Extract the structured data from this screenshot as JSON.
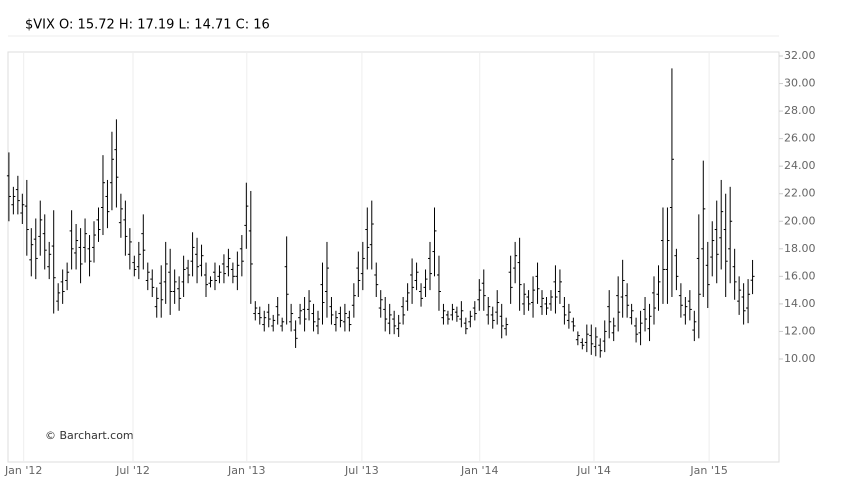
{
  "chart_data": {
    "type": "ohlc",
    "title": "$VIX O: 15.72 H: 17.19 L: 14.71 C: 16",
    "watermark": "© Barchart.com",
    "color": "#000000",
    "x": [
      0,
      1,
      2,
      3,
      4,
      5,
      6,
      7,
      8,
      9,
      10,
      11,
      12,
      13,
      14,
      15,
      16,
      17,
      18,
      19,
      20,
      21,
      22,
      23,
      24,
      25,
      26,
      27,
      28,
      29,
      30,
      31,
      32,
      33,
      34,
      35,
      36,
      37,
      38,
      39,
      40,
      41,
      42,
      43,
      44,
      45,
      46,
      47,
      48,
      49,
      50,
      51,
      52,
      53,
      54,
      55,
      56,
      57,
      58,
      59,
      60,
      61,
      62,
      63,
      64,
      65,
      66,
      67,
      68,
      69,
      70,
      71,
      72,
      73,
      74,
      75,
      76,
      77,
      78,
      79,
      80,
      81,
      82,
      83,
      84,
      85,
      86,
      87,
      88,
      89,
      90,
      91,
      92,
      93,
      94,
      95,
      96,
      97,
      98,
      99,
      100,
      101,
      102,
      103,
      104,
      105,
      106,
      107,
      108,
      109,
      110,
      111,
      112,
      113,
      114,
      115,
      116,
      117,
      118,
      119,
      120,
      121,
      122,
      123,
      124,
      125,
      126,
      127,
      128,
      129,
      130,
      131,
      132,
      133,
      134,
      135,
      136,
      137,
      138,
      139,
      140,
      141,
      142,
      143,
      144,
      145,
      146,
      147,
      148,
      149,
      150,
      151,
      152,
      153,
      154,
      155,
      156,
      157,
      158,
      159,
      160,
      161,
      162,
      163,
      164,
      165,
      166
    ],
    "open": [
      23.3,
      21.2,
      22.3,
      20.6,
      21.1,
      17.2,
      18.7,
      18.9,
      19.1,
      16.7,
      18.2,
      14.2,
      15.6,
      15.7,
      19.3,
      17.7,
      18.1,
      18.1,
      18.0,
      18.1,
      20.1,
      21.0,
      21.8,
      22.8,
      25.2,
      19.9,
      20.1,
      17.6,
      17.0,
      16.7,
      19.1,
      15.7,
      15.8,
      13.8,
      15.5,
      15.6,
      16.3,
      14.9,
      15.1,
      15.6,
      16.6,
      17.1,
      17.6,
      16.8,
      16.1,
      15.5,
      16.3,
      16.0,
      16.9,
      16.7,
      16.5,
      16.0,
      18.0,
      19.7,
      19.3,
      13.3,
      13.3,
      12.5,
      13.4,
      12.4,
      13.8,
      12.4,
      16.7,
      12.7,
      12.1,
      13.0,
      13.6,
      13.6,
      13.3,
      12.4,
      15.4,
      14.9,
      13.8,
      12.5,
      13.3,
      12.7,
      13.0,
      13.9,
      16.6,
      16.2,
      19.4,
      18.3,
      16.1,
      13.7,
      13.6,
      12.6,
      12.9,
      12.2,
      13.8,
      14.2,
      16.1,
      15.7,
      14.9,
      15.2,
      17.3,
      17.8,
      16.1,
      13.0,
      13.2,
      13.2,
      13.4,
      12.9,
      12.6,
      12.7,
      13.7,
      14.3,
      15.5,
      13.2,
      13.2,
      13.4,
      13.1,
      12.2,
      16.3,
      16.6,
      17.0,
      14.0,
      14.5,
      14.1,
      16.0,
      13.8,
      14.0,
      14.0,
      15.6,
      14.9,
      13.8,
      12.8,
      12.7,
      11.4,
      11.2,
      11.2,
      11.7,
      10.9,
      11.0,
      11.3,
      13.8,
      11.9,
      14.6,
      14.5,
      14.6,
      13.0,
      12.4,
      11.9,
      13.6,
      12.2,
      14.8,
      14.7,
      18.6,
      16.5,
      21.0,
      17.5,
      14.6,
      13.2,
      14.2,
      12.1,
      17.3,
      18.0,
      16.8,
      17.4,
      19.4,
      18.8,
      19.4,
      18.0,
      16.7,
      14.2,
      14.5,
      13.7,
      15.72
    ],
    "high": [
      25,
      22.5,
      23.3,
      22,
      23,
      19.5,
      20.2,
      21.5,
      20.5,
      18.5,
      20.8,
      15.5,
      16.5,
      17,
      20.8,
      19.8,
      19.5,
      20.2,
      19,
      20,
      21,
      24.8,
      23,
      26.5,
      27.4,
      22,
      21.5,
      19.5,
      17.5,
      18.5,
      20.5,
      17,
      16.5,
      15.2,
      16.8,
      18.5,
      18,
      16.5,
      16,
      17.5,
      17.2,
      19.2,
      18.8,
      18.3,
      17,
      16,
      17,
      16.8,
      17.6,
      18,
      17,
      17.8,
      19,
      22.8,
      22.2,
      14.2,
      13.8,
      13.5,
      14,
      13.2,
      14.5,
      13,
      18.9,
      14,
      12.8,
      14,
      14.5,
      15,
      14,
      13.5,
      17,
      18.5,
      14.5,
      13.5,
      13.8,
      14,
      13.5,
      15.5,
      17.8,
      18.5,
      21,
      21.5,
      17,
      15,
      14.5,
      14,
      13.5,
      13.2,
      14.5,
      15.5,
      17.3,
      17,
      15.5,
      16.5,
      18.5,
      21,
      17.5,
      14,
      13.5,
      14,
      13.8,
      14.2,
      13,
      13.5,
      14.2,
      15.8,
      16.5,
      14.5,
      13.8,
      15,
      14,
      13,
      17.5,
      18.5,
      18.8,
      15.5,
      15,
      16,
      17,
      15,
      14.5,
      15,
      16.8,
      16.5,
      14.5,
      14,
      13,
      12,
      11.5,
      12.5,
      12.5,
      12.3,
      11.5,
      12.8,
      15,
      13,
      16,
      17.2,
      15.5,
      14,
      13,
      13.5,
      14.5,
      14,
      16,
      16.8,
      21,
      21,
      31.1,
      18,
      15.5,
      14.5,
      15,
      13.5,
      20.5,
      24.4,
      18.5,
      20,
      21.5,
      23,
      22,
      22.5,
      18,
      16,
      15.5,
      15.8,
      17.19
    ],
    "low": [
      20,
      20.5,
      20.5,
      19.8,
      17.5,
      16,
      15.8,
      17.5,
      16.5,
      15.8,
      13.3,
      13.5,
      14,
      15,
      16.5,
      16.5,
      15.5,
      17,
      16,
      17,
      18.5,
      19,
      19.5,
      20.8,
      21,
      18.8,
      17.5,
      16.5,
      16,
      15.8,
      16.5,
      15,
      14.5,
      13,
      13,
      14,
      13.2,
      14,
      13.5,
      14.5,
      15.5,
      16,
      15.5,
      16,
      14.5,
      15.2,
      15,
      15.5,
      15.5,
      16,
      15.5,
      15,
      16,
      18,
      14,
      12.8,
      12.5,
      12,
      12.3,
      12,
      12.5,
      12,
      12.5,
      12,
      10.8,
      12.5,
      12,
      12.8,
      12,
      11.8,
      12.5,
      13,
      12.5,
      12,
      12.3,
      12,
      12,
      13,
      14.5,
      15,
      16.5,
      16.5,
      14.5,
      13,
      12,
      11.8,
      11.8,
      11.6,
      12.5,
      13.5,
      14,
      15,
      13.8,
      14.5,
      15,
      16,
      13.5,
      12.5,
      12.5,
      12.8,
      12.7,
      12.3,
      11.8,
      12.3,
      12.8,
      13.5,
      13.5,
      12.5,
      12.2,
      12.5,
      11.5,
      11.7,
      14,
      15.5,
      13.5,
      13.2,
      13.5,
      13,
      14,
      13.2,
      13.2,
      13.5,
      13.3,
      14,
      12.5,
      12.2,
      12,
      11,
      10.7,
      10.5,
      10.3,
      10.2,
      10.1,
      10.5,
      11.5,
      11.3,
      12,
      13,
      13,
      12.5,
      11.2,
      11,
      12,
      11.3,
      12.5,
      13.5,
      14,
      14,
      14.5,
      15,
      13,
      12.5,
      12.8,
      11.3,
      11.5,
      14.5,
      13.7,
      16,
      15.5,
      16.5,
      14.5,
      15.5,
      14.3,
      13.2,
      12.5,
      12.6,
      14.71
    ],
    "close": [
      21.8,
      21.8,
      21.5,
      21.2,
      19.4,
      18.3,
      17.3,
      20.1,
      17.9,
      17.6,
      15.9,
      14.8,
      14.9,
      16.3,
      18.0,
      18.6,
      16.9,
      19.1,
      17.1,
      19.0,
      19.4,
      22.8,
      20.7,
      24.5,
      23.2,
      20.9,
      18.9,
      18.5,
      16.5,
      17.6,
      17.9,
      16.3,
      15.2,
      14.4,
      14.3,
      16.9,
      14.9,
      15.6,
      14.4,
      16.5,
      16.1,
      18.1,
      16.7,
      17.5,
      15.4,
      15.7,
      15.7,
      16.3,
      16.2,
      17.3,
      16.0,
      16.8,
      17.1,
      21.1,
      16.9,
      13.7,
      13.0,
      13.0,
      12.9,
      12.8,
      13.2,
      12.7,
      14.7,
      13.3,
      11.5,
      13.5,
      12.9,
      14.2,
      12.7,
      12.9,
      14.1,
      16.6,
      13.2,
      13.0,
      12.8,
      13.3,
      12.5,
      14.6,
      15.7,
      17.3,
      18.1,
      19.8,
      15.4,
      14.3,
      12.9,
      13.2,
      12.4,
      12.6,
      13.2,
      14.8,
      15.2,
      16.3,
      14.4,
      15.8,
      16.2,
      19.3,
      14.9,
      13.5,
      12.9,
      13.6,
      13.1,
      13.5,
      12.2,
      13.1,
      13.3,
      15.0,
      14.6,
      13.8,
      12.8,
      14.1,
      12.4,
      12.5,
      15.2,
      17.5,
      15.4,
      14.7,
      14.0,
      15.0,
      15.1,
      14.4,
      13.7,
      14.5,
      14.5,
      15.6,
      13.2,
      13.4,
      12.4,
      11.7,
      11.0,
      11.8,
      11.1,
      11.6,
      10.6,
      12.0,
      12.7,
      12.4,
      13.4,
      15.7,
      13.9,
      13.5,
      11.8,
      12.6,
      12.9,
      13.1,
      13.7,
      15.6,
      16.5,
      18.6,
      24.5,
      16.0,
      13.9,
      13.8,
      13.6,
      12.7,
      14.7,
      20.9,
      15.4,
      18.6,
      17.6,
      20.7,
      17.1,
      20.0,
      15.6,
      15.0,
      13.5,
      14.7,
      16
    ],
    "xlim": [
      -0.2,
      171.9
    ],
    "xticks": [
      {
        "value": 3.3,
        "label": "Jan '12"
      },
      {
        "value": 27.7,
        "label": "Jul '12"
      },
      {
        "value": 53.1,
        "label": "Jan '13"
      },
      {
        "value": 78.8,
        "label": "Jul '13"
      },
      {
        "value": 105.1,
        "label": "Jan '14"
      },
      {
        "value": 130.6,
        "label": "Jul '14"
      },
      {
        "value": 156.3,
        "label": "Jan '15"
      }
    ],
    "ylim": [
      2.52,
      32.29
    ],
    "yticks": [
      {
        "value": 10,
        "label": "10.00"
      },
      {
        "value": 12,
        "label": "12.00"
      },
      {
        "value": 14,
        "label": "14.00"
      },
      {
        "value": 16,
        "label": "16.00"
      },
      {
        "value": 18,
        "label": "18.00"
      },
      {
        "value": 20,
        "label": "20.00"
      },
      {
        "value": 22,
        "label": "22.00"
      },
      {
        "value": 24,
        "label": "24.00"
      },
      {
        "value": 26,
        "label": "26.00"
      },
      {
        "value": 28,
        "label": "28.00"
      },
      {
        "value": 30,
        "label": "30.00"
      },
      {
        "value": 32,
        "label": "32.00"
      }
    ]
  }
}
